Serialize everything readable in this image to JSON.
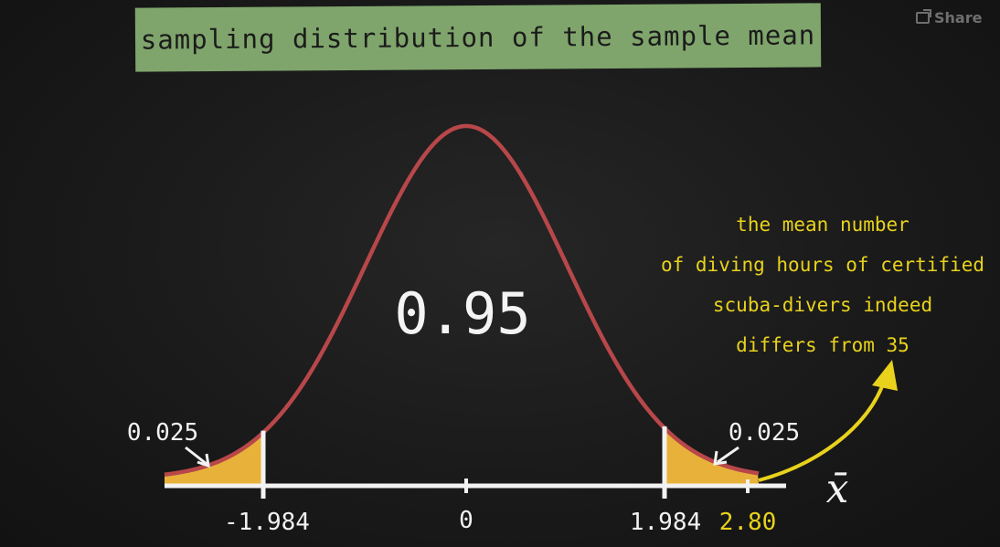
{
  "title": "sampling distribution of the sample mean",
  "share": {
    "label": "Share",
    "icon": "share-icon"
  },
  "chart_data": {
    "type": "area",
    "distribution": "normal",
    "x_axis_symbol": "x̄",
    "center_tick": "0",
    "critical_values": [
      "-1.984",
      "1.984"
    ],
    "observed_value": "2.80",
    "center_area_label": "0.95",
    "tail_area_labels": [
      "0.025",
      "0.025"
    ],
    "colors": {
      "curve": "#b8474a",
      "tail_fill": "#e8b23a",
      "axis": "#f2f2f2",
      "observed": "#e8d21c"
    }
  },
  "annotation": {
    "lines": [
      "the mean number",
      "of diving hours of certified",
      "scuba-divers indeed",
      "differs from 35"
    ]
  }
}
